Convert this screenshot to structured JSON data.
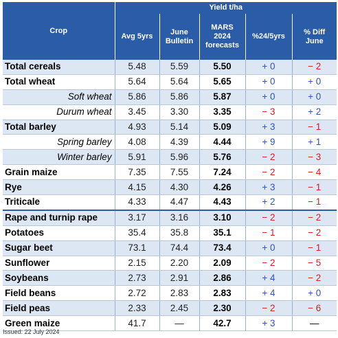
{
  "header": {
    "group": "Yield t/ha",
    "crop": "Crop",
    "avg5": "Avg 5yrs",
    "june_bulletin": [
      "June",
      "Bulletin"
    ],
    "mars": [
      "MARS",
      "2024",
      "forecasts"
    ],
    "pct24_5yrs": "%24/5yrs",
    "pct_diff_june": [
      "% Diff",
      "June"
    ]
  },
  "rows": [
    {
      "crop": "Total cereals",
      "sub": false,
      "avg5": "5.48",
      "june": "5.59",
      "forecast": "5.50",
      "d5": "+ 0",
      "d5_sign": "pos",
      "dj": "− 2",
      "dj_sign": "neg"
    },
    {
      "crop": "Total wheat",
      "sub": false,
      "avg5": "5.64",
      "june": "5.64",
      "forecast": "5.65",
      "d5": "+ 0",
      "d5_sign": "pos",
      "dj": "+ 0",
      "dj_sign": "pos"
    },
    {
      "crop": "Soft wheat",
      "sub": true,
      "avg5": "5.86",
      "june": "5.86",
      "forecast": "5.87",
      "d5": "+ 0",
      "d5_sign": "pos",
      "dj": "+ 0",
      "dj_sign": "pos"
    },
    {
      "crop": "Durum wheat",
      "sub": true,
      "avg5": "3.45",
      "june": "3.30",
      "forecast": "3.35",
      "d5": "− 3",
      "d5_sign": "neg",
      "dj": "+ 2",
      "dj_sign": "pos"
    },
    {
      "crop": "Total barley",
      "sub": false,
      "avg5": "4.93",
      "june": "5.14",
      "forecast": "5.09",
      "d5": "+ 3",
      "d5_sign": "pos",
      "dj": "− 1",
      "dj_sign": "neg"
    },
    {
      "crop": "Spring barley",
      "sub": true,
      "avg5": "4.08",
      "june": "4.39",
      "forecast": "4.44",
      "d5": "+ 9",
      "d5_sign": "pos",
      "dj": "+ 1",
      "dj_sign": "pos"
    },
    {
      "crop": "Winter barley",
      "sub": true,
      "avg5": "5.91",
      "june": "5.96",
      "forecast": "5.76",
      "d5": "− 2",
      "d5_sign": "neg",
      "dj": "− 3",
      "dj_sign": "neg"
    },
    {
      "crop": "Grain maize",
      "sub": false,
      "avg5": "7.35",
      "june": "7.55",
      "forecast": "7.24",
      "d5": "− 2",
      "d5_sign": "neg",
      "dj": "− 4",
      "dj_sign": "neg"
    },
    {
      "crop": "Rye",
      "sub": false,
      "avg5": "4.15",
      "june": "4.30",
      "forecast": "4.26",
      "d5": "+ 3",
      "d5_sign": "pos",
      "dj": "− 1",
      "dj_sign": "neg"
    },
    {
      "crop": "Triticale",
      "sub": false,
      "avg5": "4.33",
      "june": "4.47",
      "forecast": "4.43",
      "d5": "+ 2",
      "d5_sign": "pos",
      "dj": "− 1",
      "dj_sign": "neg"
    },
    {
      "crop": "Rape and turnip rape",
      "sub": false,
      "sep": true,
      "avg5": "3.17",
      "june": "3.16",
      "forecast": "3.10",
      "d5": "− 2",
      "d5_sign": "neg",
      "dj": "− 2",
      "dj_sign": "neg"
    },
    {
      "crop": "Potatoes",
      "sub": false,
      "avg5": "35.4",
      "june": "35.8",
      "forecast": "35.1",
      "d5": "− 1",
      "d5_sign": "neg",
      "dj": "− 2",
      "dj_sign": "neg"
    },
    {
      "crop": "Sugar beet",
      "sub": false,
      "avg5": "73.1",
      "june": "74.4",
      "forecast": "73.4",
      "d5": "+ 0",
      "d5_sign": "pos",
      "dj": "− 1",
      "dj_sign": "neg"
    },
    {
      "crop": "Sunflower",
      "sub": false,
      "avg5": "2.15",
      "june": "2.20",
      "forecast": "2.09",
      "d5": "− 2",
      "d5_sign": "neg",
      "dj": "− 5",
      "dj_sign": "neg"
    },
    {
      "crop": "Soybeans",
      "sub": false,
      "avg5": "2.73",
      "june": "2.91",
      "forecast": "2.86",
      "d5": "+ 4",
      "d5_sign": "pos",
      "dj": "− 2",
      "dj_sign": "neg"
    },
    {
      "crop": "Field beans",
      "sub": false,
      "avg5": "2.72",
      "june": "2.83",
      "forecast": "2.83",
      "d5": "+ 4",
      "d5_sign": "pos",
      "dj": "+ 0",
      "dj_sign": "pos"
    },
    {
      "crop": "Field peas",
      "sub": false,
      "avg5": "2.33",
      "june": "2.45",
      "forecast": "2.30",
      "d5": "− 2",
      "d5_sign": "neg",
      "dj": "− 6",
      "dj_sign": "neg"
    },
    {
      "crop": "Green maize",
      "sub": false,
      "avg5": "41.7",
      "june": "—",
      "forecast": "42.7",
      "d5": "+ 3",
      "d5_sign": "pos",
      "dj": "—",
      "dj_sign": "dash"
    }
  ],
  "footer": {
    "issued": "Issued: 22 July 2024"
  },
  "colors": {
    "header_bg": "#2a5ca8",
    "positive": "#2f55b5",
    "negative": "#d21f1f",
    "row_stripe": "#dde7f4"
  }
}
